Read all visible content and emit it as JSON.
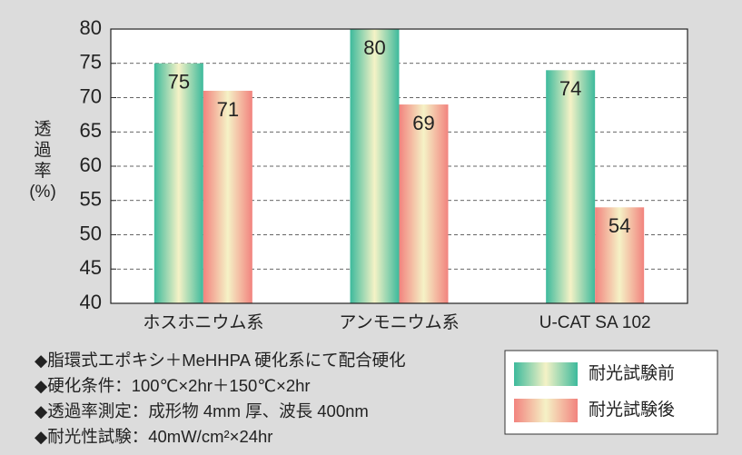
{
  "chart_data": {
    "type": "bar",
    "y_label_lines": [
      "透",
      "過",
      "率",
      "(%)"
    ],
    "categories": [
      "ホスホニウム系",
      "アンモニウム系",
      "U-CAT SA 102"
    ],
    "series": [
      {
        "name": "耐光試験前",
        "color": "#3dba9c",
        "values": [
          75,
          80,
          74
        ]
      },
      {
        "name": "耐光試験後",
        "color": "#f2837e",
        "values": [
          71,
          69,
          54
        ]
      }
    ],
    "highlight_color": "#f5f2c6",
    "ylim": [
      40,
      80
    ],
    "yticks": [
      40,
      45,
      50,
      55,
      60,
      65,
      70,
      75,
      80
    ],
    "grid": true,
    "notes": [
      "◆脂環式エポキシ＋MeHHPA 硬化系にて配合硬化",
      "◆硬化条件：100℃×2hr＋150℃×2hr",
      "◆透過率測定：成形物 4mm 厚、波長 400nm",
      "◆耐光性試験：40mW/cm²×24hr"
    ]
  }
}
